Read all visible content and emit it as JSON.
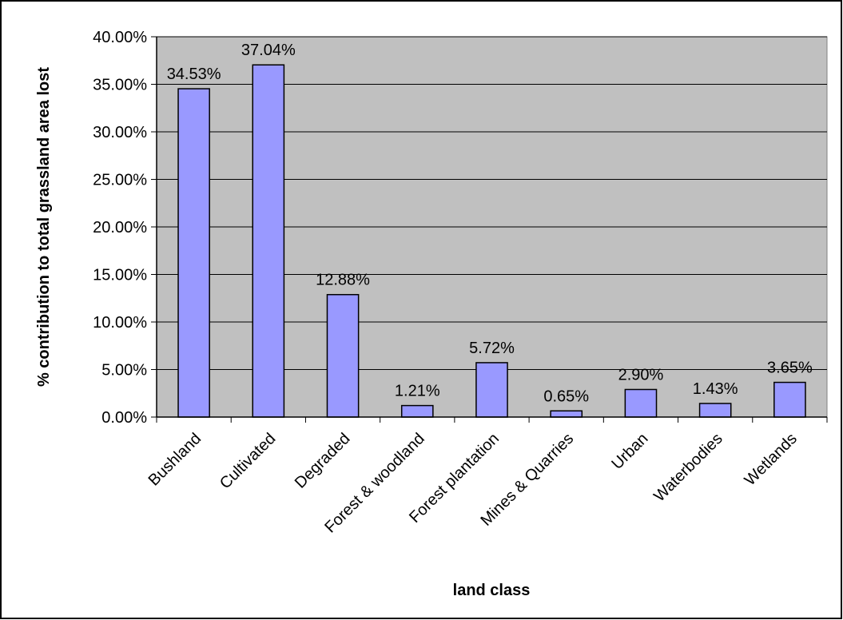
{
  "chart_data": {
    "type": "bar",
    "title": "",
    "xlabel": "land class",
    "ylabel": "% contribution to total grassland area lost",
    "categories": [
      "Bushland",
      "Cultivated",
      "Degraded",
      "Forest & woodland",
      "Forest plantation",
      "Mines & Quarries",
      "Urban",
      "Waterbodies",
      "Wetlands"
    ],
    "values": [
      34.53,
      37.04,
      12.88,
      1.21,
      5.72,
      0.65,
      2.9,
      1.43,
      3.65
    ],
    "value_labels": [
      "34.53%",
      "37.04%",
      "12.88%",
      "1.21%",
      "5.72%",
      "0.65%",
      "2.90%",
      "1.43%",
      "3.65%"
    ],
    "ylim": [
      0,
      40
    ],
    "yticks": [
      0,
      5,
      10,
      15,
      20,
      25,
      30,
      35,
      40
    ],
    "ytick_labels": [
      "0.00%",
      "5.00%",
      "10.00%",
      "15.00%",
      "20.00%",
      "25.00%",
      "30.00%",
      "35.00%",
      "40.00%"
    ],
    "grid": true,
    "legend": "none",
    "colors": {
      "bar": "#9999ff",
      "plot_bg": "#c0c0c0",
      "grid": "#000000",
      "outline": "#000000"
    }
  }
}
